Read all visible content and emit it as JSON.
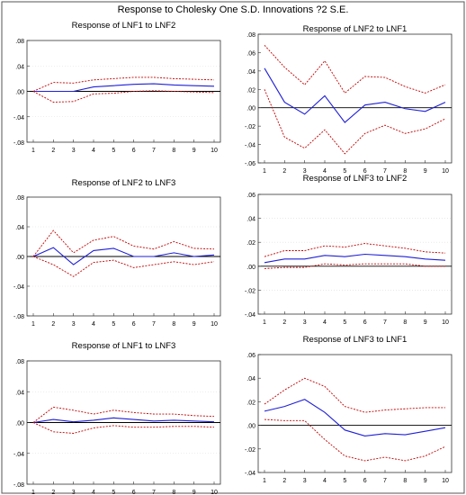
{
  "figure_title": "Response to Cholesky One S.D. Innovations ?2 S.E.",
  "colors": {
    "response": "#1f1fd6",
    "band": "#c00000",
    "zero": "#000000",
    "grid": "#dcdcdc"
  },
  "chart_data": [
    {
      "type": "line",
      "title": "Response of LNF1 to LNF2",
      "x": [
        1,
        2,
        3,
        4,
        5,
        6,
        7,
        8,
        9,
        10
      ],
      "x_ticks": [
        1,
        2,
        3,
        4,
        5,
        6,
        7,
        8,
        9,
        10
      ],
      "ylim": [
        -0.08,
        0.08
      ],
      "y_ticks": [
        -0.08,
        -0.04,
        0.0,
        0.04,
        0.08
      ],
      "y_tick_labels": [
        ".08",
        ".04",
        ".00",
        "-.04",
        "-.08"
      ],
      "grid": true,
      "series": [
        {
          "role": "response",
          "values": [
            0.0,
            0.0,
            0.0,
            0.007,
            0.009,
            0.011,
            0.012,
            0.01,
            0.009,
            0.008
          ]
        },
        {
          "role": "upper",
          "values": [
            0.0,
            0.014,
            0.013,
            0.018,
            0.02,
            0.022,
            0.022,
            0.02,
            0.019,
            0.018
          ]
        },
        {
          "role": "lower",
          "values": [
            0.0,
            -0.017,
            -0.016,
            -0.004,
            -0.003,
            0.0,
            0.001,
            0.0,
            -0.001,
            -0.002
          ]
        }
      ]
    },
    {
      "type": "line",
      "title": "Response of LNF2 to LNF1",
      "x": [
        1,
        2,
        3,
        4,
        5,
        6,
        7,
        8,
        9,
        10
      ],
      "x_ticks": [
        1,
        2,
        3,
        4,
        5,
        6,
        7,
        8,
        9,
        10
      ],
      "ylim": [
        -0.06,
        0.08
      ],
      "y_ticks": [
        -0.06,
        -0.04,
        -0.02,
        0.0,
        0.02,
        0.04,
        0.06,
        0.08
      ],
      "y_tick_labels": [
        ".08",
        ".06",
        ".04",
        ".02",
        ".00",
        "-.02",
        "-.04",
        "-.06"
      ],
      "grid": false,
      "series": [
        {
          "role": "response",
          "values": [
            0.043,
            0.006,
            -0.007,
            0.013,
            -0.016,
            0.003,
            0.006,
            -0.001,
            -0.004,
            0.006
          ]
        },
        {
          "role": "upper",
          "values": [
            0.068,
            0.044,
            0.025,
            0.051,
            0.016,
            0.034,
            0.033,
            0.023,
            0.016,
            0.025
          ]
        },
        {
          "role": "lower",
          "values": [
            0.02,
            -0.032,
            -0.044,
            -0.024,
            -0.05,
            -0.028,
            -0.019,
            -0.028,
            -0.023,
            -0.012
          ]
        }
      ]
    },
    {
      "type": "line",
      "title": "Response of LNF2 to LNF3",
      "x": [
        1,
        2,
        3,
        4,
        5,
        6,
        7,
        8,
        9,
        10
      ],
      "x_ticks": [
        1,
        2,
        3,
        4,
        5,
        6,
        7,
        8,
        9,
        10
      ],
      "ylim": [
        -0.08,
        0.08
      ],
      "y_ticks": [
        -0.08,
        -0.04,
        0.0,
        0.04,
        0.08
      ],
      "y_tick_labels": [
        ".08",
        ".04",
        ".00",
        "-.04",
        "-.08"
      ],
      "grid": true,
      "series": [
        {
          "role": "response",
          "values": [
            0.0,
            0.012,
            -0.011,
            0.008,
            0.011,
            0.0,
            0.0,
            0.005,
            0.0,
            0.002
          ]
        },
        {
          "role": "upper",
          "values": [
            0.0,
            0.035,
            0.005,
            0.022,
            0.027,
            0.014,
            0.01,
            0.02,
            0.011,
            0.01
          ]
        },
        {
          "role": "lower",
          "values": [
            0.0,
            -0.011,
            -0.027,
            -0.008,
            -0.005,
            -0.015,
            -0.011,
            -0.007,
            -0.011,
            -0.007
          ]
        }
      ]
    },
    {
      "type": "line",
      "title": "Response of LNF3 to LNF2",
      "x": [
        1,
        2,
        3,
        4,
        5,
        6,
        7,
        8,
        9,
        10
      ],
      "x_ticks": [
        1,
        2,
        3,
        4,
        5,
        6,
        7,
        8,
        9,
        10
      ],
      "ylim": [
        -0.04,
        0.06
      ],
      "y_ticks": [
        -0.04,
        -0.02,
        0.0,
        0.02,
        0.04,
        0.06
      ],
      "y_tick_labels": [
        ".06",
        ".04",
        ".02",
        ".00",
        "-.02",
        "-.04"
      ],
      "grid": true,
      "series": [
        {
          "role": "response",
          "values": [
            0.003,
            0.006,
            0.006,
            0.009,
            0.008,
            0.01,
            0.009,
            0.008,
            0.006,
            0.005
          ]
        },
        {
          "role": "upper",
          "values": [
            0.008,
            0.013,
            0.013,
            0.017,
            0.016,
            0.019,
            0.017,
            0.015,
            0.012,
            0.011
          ]
        },
        {
          "role": "lower",
          "values": [
            -0.002,
            -0.001,
            -0.001,
            0.002,
            0.001,
            0.002,
            0.002,
            0.002,
            0.0,
            0.0
          ]
        }
      ]
    },
    {
      "type": "line",
      "title": "Response of LNF1 to LNF3",
      "x": [
        1,
        2,
        3,
        4,
        5,
        6,
        7,
        8,
        9,
        10
      ],
      "x_ticks": [
        1,
        2,
        3,
        4,
        5,
        6,
        7,
        8,
        9,
        10
      ],
      "ylim": [
        -0.08,
        0.08
      ],
      "y_ticks": [
        -0.08,
        -0.04,
        0.0,
        0.04,
        0.08
      ],
      "y_tick_labels": [
        ".08",
        ".04",
        ".00",
        "-.04",
        "-.08"
      ],
      "grid": true,
      "series": [
        {
          "role": "response",
          "values": [
            0.0,
            0.004,
            0.001,
            0.003,
            0.006,
            0.004,
            0.002,
            0.003,
            0.002,
            0.001
          ]
        },
        {
          "role": "upper",
          "values": [
            0.0,
            0.02,
            0.016,
            0.011,
            0.016,
            0.013,
            0.011,
            0.011,
            0.009,
            0.008
          ]
        },
        {
          "role": "lower",
          "values": [
            0.0,
            -0.012,
            -0.014,
            -0.007,
            -0.004,
            -0.006,
            -0.006,
            -0.005,
            -0.005,
            -0.006
          ]
        }
      ]
    },
    {
      "type": "line",
      "title": "Response of LNF3 to LNF1",
      "x": [
        1,
        2,
        3,
        4,
        5,
        6,
        7,
        8,
        9,
        10
      ],
      "x_ticks": [
        1,
        2,
        3,
        4,
        5,
        6,
        7,
        8,
        9,
        10
      ],
      "ylim": [
        -0.04,
        0.06
      ],
      "y_ticks": [
        -0.04,
        -0.02,
        0.0,
        0.02,
        0.04,
        0.06
      ],
      "y_tick_labels": [
        ".06",
        ".04",
        ".02",
        ".00",
        "-.02",
        "-.04"
      ],
      "grid": false,
      "series": [
        {
          "role": "response",
          "values": [
            0.012,
            0.016,
            0.022,
            0.011,
            -0.004,
            -0.009,
            -0.007,
            -0.008,
            -0.005,
            -0.002
          ]
        },
        {
          "role": "upper",
          "values": [
            0.018,
            0.03,
            0.04,
            0.033,
            0.016,
            0.011,
            0.013,
            0.014,
            0.015,
            0.015
          ]
        },
        {
          "role": "lower",
          "values": [
            0.005,
            0.004,
            0.004,
            -0.012,
            -0.026,
            -0.03,
            -0.027,
            -0.03,
            -0.026,
            -0.018
          ]
        }
      ]
    }
  ]
}
